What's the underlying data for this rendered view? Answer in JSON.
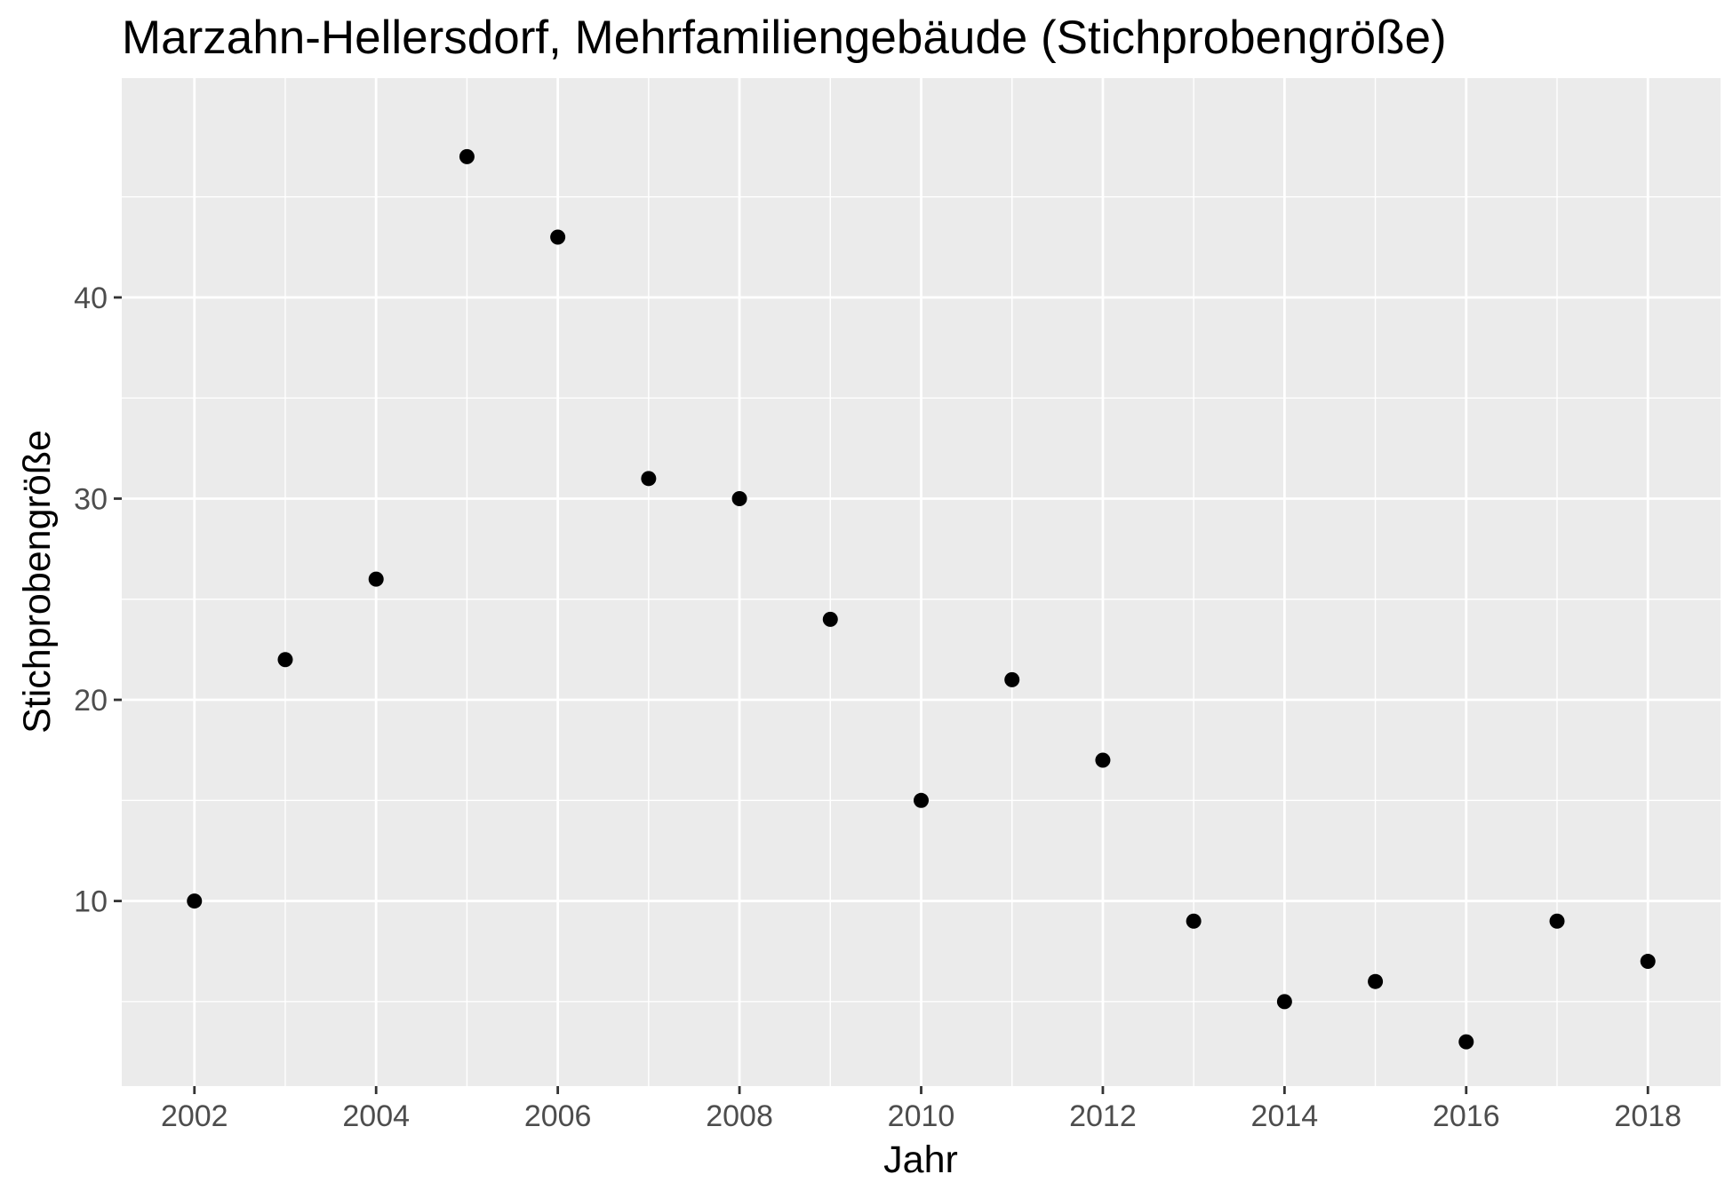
{
  "chart_data": {
    "type": "scatter",
    "title": "Marzahn-Hellersdorf, Mehrfamiliengebäude (Stichprobengröße)",
    "xlabel": "Jahr",
    "ylabel": "Stichprobengröße",
    "x": [
      2002,
      2003,
      2004,
      2005,
      2006,
      2007,
      2008,
      2009,
      2010,
      2011,
      2012,
      2013,
      2014,
      2015,
      2016,
      2017,
      2018
    ],
    "y": [
      10,
      22,
      26,
      47,
      43,
      31,
      30,
      24,
      15,
      21,
      17,
      9,
      5,
      6,
      3,
      9,
      7
    ],
    "xlim": [
      2001.2,
      2018.8
    ],
    "ylim": [
      0.8,
      50.9
    ],
    "x_ticks": [
      2002,
      2004,
      2006,
      2008,
      2010,
      2012,
      2014,
      2016,
      2018
    ],
    "y_ticks": [
      10,
      20,
      30,
      40
    ],
    "x_minor_ticks": [
      2003,
      2005,
      2007,
      2009,
      2011,
      2013,
      2015,
      2017
    ],
    "y_minor_ticks": [
      5,
      15,
      25,
      35,
      45
    ],
    "grid": true,
    "legend": "none",
    "colors": {
      "panel_background": "#ebebeb",
      "grid_line": "#ffffff",
      "point": "#000000",
      "tick_label": "#4d4d4d",
      "tick_mark": "#333333",
      "text": "#000000"
    }
  }
}
